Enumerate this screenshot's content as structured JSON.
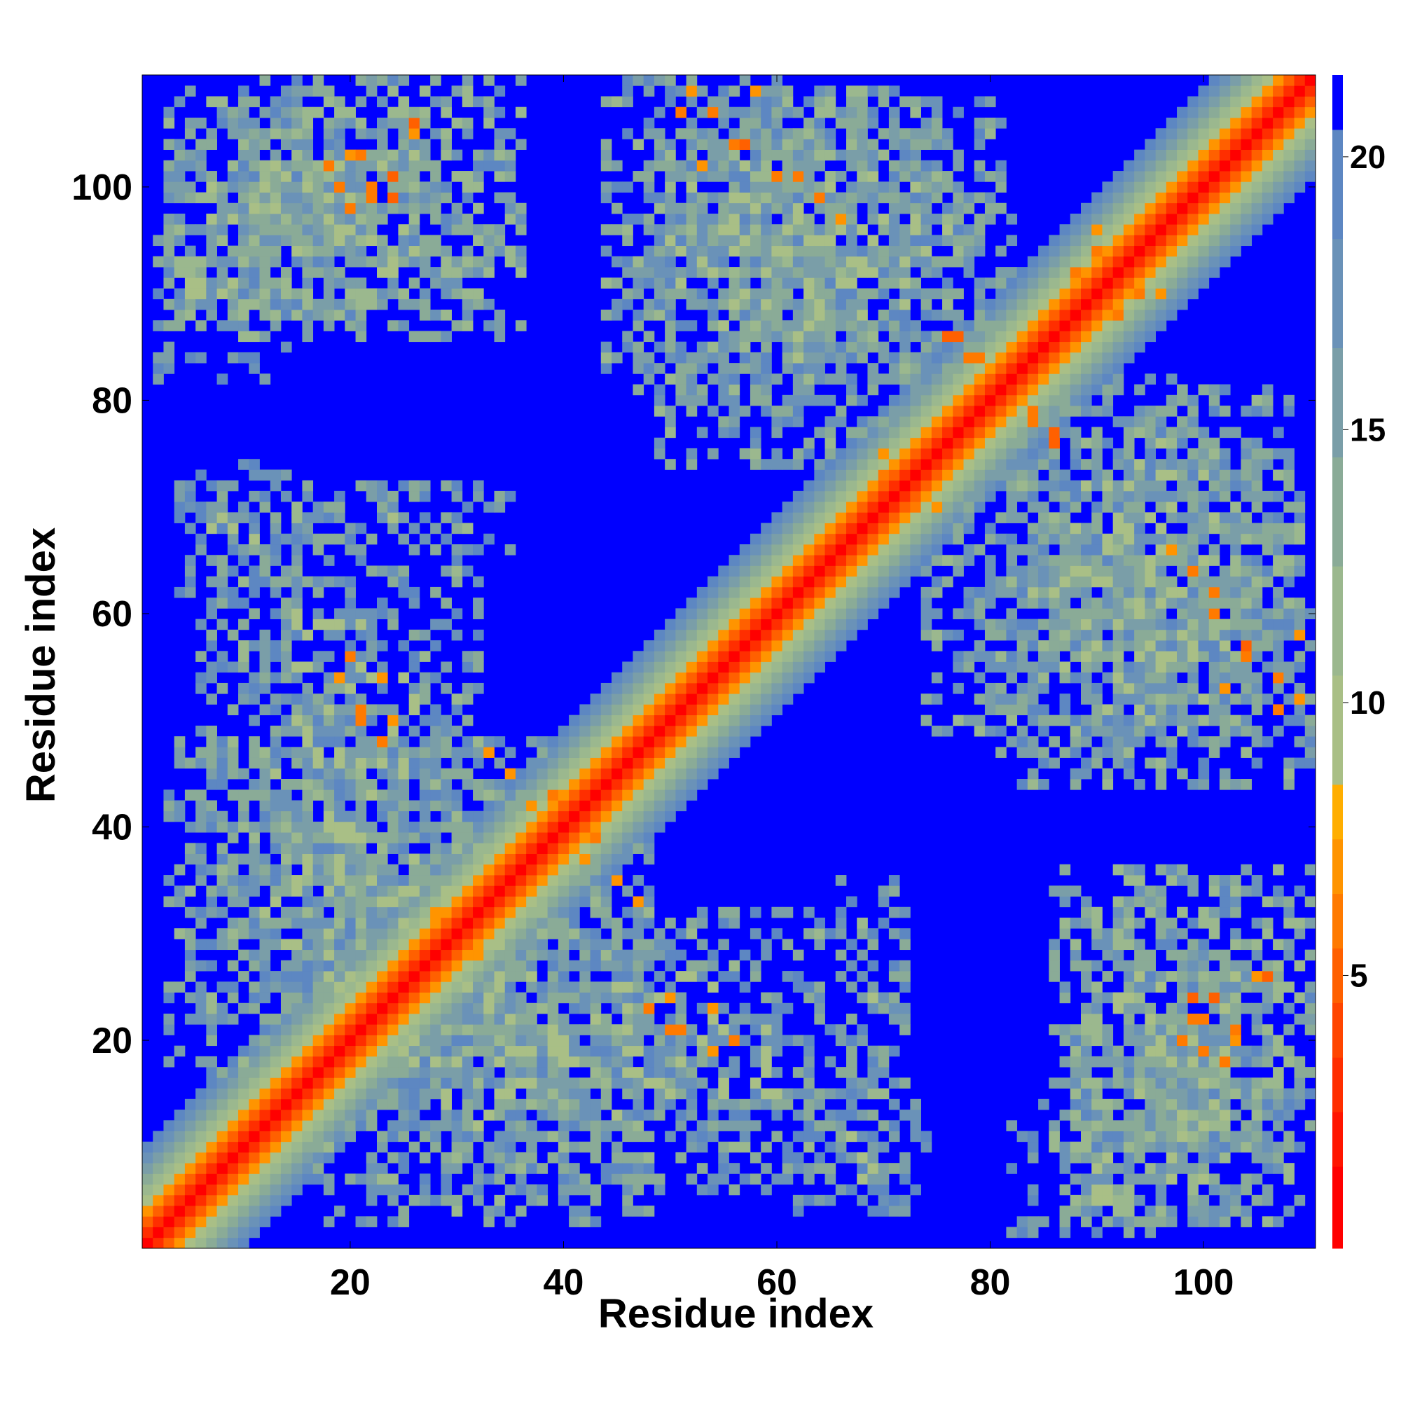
{
  "chart_data": {
    "type": "heatmap",
    "title": "",
    "xlabel": "Residue index",
    "ylabel": "Residue index",
    "xlim": [
      1,
      110
    ],
    "ylim": [
      1,
      110
    ],
    "n_residues": 110,
    "x_ticks": [
      20,
      40,
      60,
      80,
      100
    ],
    "y_ticks": [
      20,
      40,
      60,
      80,
      100
    ],
    "x_tick_labels": [
      "20",
      "40",
      "60",
      "80",
      "100"
    ],
    "y_tick_labels": [
      "20",
      "40",
      "60",
      "80",
      "100"
    ],
    "colorbar": {
      "range": [
        0,
        21.5
      ],
      "ticks": [
        5,
        10,
        15,
        20
      ],
      "tick_labels": [
        "5",
        "10",
        "15",
        "20"
      ],
      "levels": [
        {
          "lo": 0.0,
          "hi": 1.5,
          "color": "#ff0000"
        },
        {
          "lo": 1.5,
          "hi": 2.5,
          "color": "#ff1500"
        },
        {
          "lo": 2.5,
          "hi": 3.5,
          "color": "#ff2e00"
        },
        {
          "lo": 3.5,
          "hi": 4.5,
          "color": "#ff4500"
        },
        {
          "lo": 4.5,
          "hi": 5.5,
          "color": "#ff6000"
        },
        {
          "lo": 5.5,
          "hi": 6.5,
          "color": "#ff7a00"
        },
        {
          "lo": 6.5,
          "hi": 7.5,
          "color": "#ff9400"
        },
        {
          "lo": 7.5,
          "hi": 8.5,
          "color": "#ffae00"
        },
        {
          "lo": 8.5,
          "hi": 10.5,
          "color": "#a9bf86"
        },
        {
          "lo": 10.5,
          "hi": 12.5,
          "color": "#9bb88e"
        },
        {
          "lo": 12.5,
          "hi": 14.5,
          "color": "#8aab97"
        },
        {
          "lo": 14.5,
          "hi": 16.5,
          "color": "#7a9ea8"
        },
        {
          "lo": 16.5,
          "hi": 18.5,
          "color": "#6a92b8"
        },
        {
          "lo": 18.5,
          "hi": 20.5,
          "color": "#5d87c2"
        },
        {
          "lo": 20.5,
          "hi": 21.5,
          "color": "#0000ff"
        }
      ]
    },
    "background_color": "#0000ff",
    "diagonal_band": [
      {
        "max_offset": 0,
        "value": 1
      },
      {
        "max_offset": 1,
        "value": 3
      },
      {
        "max_offset": 2,
        "value": 5
      },
      {
        "max_offset": 3,
        "value": 7
      },
      {
        "max_offset": 4,
        "value": 9.5
      },
      {
        "max_offset": 5,
        "value": 11
      },
      {
        "max_offset": 6,
        "value": 13
      },
      {
        "max_offset": 7,
        "value": 15
      },
      {
        "max_offset": 8,
        "value": 17
      },
      {
        "max_offset": 9,
        "value": 19
      }
    ],
    "contact_blocks": [
      {
        "i_range": [
          3,
          40
        ],
        "j_range": [
          17,
          48
        ],
        "value": 16,
        "density": 0.72
      },
      {
        "i_range": [
          28,
          72
        ],
        "j_range": [
          6,
          32
        ],
        "value": 16,
        "density": 0.68
      },
      {
        "i_range": [
          3,
          26
        ],
        "j_range": [
          88,
          109
        ],
        "value": 15,
        "density": 0.74
      },
      {
        "i_range": [
          44,
          68
        ],
        "j_range": [
          82,
          110
        ],
        "value": 16,
        "density": 0.7
      },
      {
        "i_range": [
          56,
          82
        ],
        "j_range": [
          82,
          108
        ],
        "value": 16,
        "density": 0.66
      },
      {
        "i_range": [
          74,
          109
        ],
        "j_range": [
          47,
          76
        ],
        "value": 16,
        "density": 0.7
      },
      {
        "i_range": [
          86,
          110
        ],
        "j_range": [
          10,
          36
        ],
        "value": 15,
        "density": 0.72
      },
      {
        "i_range": [
          82,
          108
        ],
        "j_range": [
          2,
          14
        ],
        "value": 17,
        "density": 0.38
      },
      {
        "i_range": [
          60,
          74
        ],
        "j_range": [
          4,
          16
        ],
        "value": 17,
        "density": 0.35
      },
      {
        "i_range": [
          20,
          36
        ],
        "j_range": [
          66,
          72
        ],
        "value": 17,
        "density": 0.3
      },
      {
        "i_range": [
          2,
          10
        ],
        "j_range": [
          84,
          94
        ],
        "value": 17,
        "density": 0.4
      }
    ],
    "strong_contacts": [
      {
        "i": 18,
        "j": 102,
        "value": 6
      },
      {
        "i": 20,
        "j": 103,
        "value": 7
      },
      {
        "i": 22,
        "j": 100,
        "value": 6
      },
      {
        "i": 24,
        "j": 99,
        "value": 5
      },
      {
        "i": 19,
        "j": 100,
        "value": 6
      },
      {
        "i": 26,
        "j": 106,
        "value": 5
      },
      {
        "i": 51,
        "j": 107,
        "value": 6
      },
      {
        "i": 53,
        "j": 102,
        "value": 7
      },
      {
        "i": 56,
        "j": 104,
        "value": 6
      },
      {
        "i": 58,
        "j": 109,
        "value": 7
      },
      {
        "i": 62,
        "j": 101,
        "value": 6
      },
      {
        "i": 66,
        "j": 97,
        "value": 7
      },
      {
        "i": 77,
        "j": 86,
        "value": 5
      },
      {
        "i": 79,
        "j": 84,
        "value": 6
      },
      {
        "i": 84,
        "j": 78,
        "value": 6
      },
      {
        "i": 86,
        "j": 76,
        "value": 5
      },
      {
        "i": 70,
        "j": 75,
        "value": 7
      },
      {
        "i": 73,
        "j": 70,
        "value": 6
      },
      {
        "i": 101,
        "j": 60,
        "value": 6
      },
      {
        "i": 104,
        "j": 57,
        "value": 5
      },
      {
        "i": 107,
        "j": 54,
        "value": 6
      },
      {
        "i": 109,
        "j": 52,
        "value": 7
      },
      {
        "i": 99,
        "j": 64,
        "value": 6
      },
      {
        "i": 19,
        "j": 54,
        "value": 7
      },
      {
        "i": 21,
        "j": 51,
        "value": 6
      },
      {
        "i": 24,
        "j": 50,
        "value": 7
      },
      {
        "i": 42,
        "j": 37,
        "value": 7
      },
      {
        "i": 45,
        "j": 35,
        "value": 7
      },
      {
        "i": 47,
        "j": 33,
        "value": 7
      },
      {
        "i": 48,
        "j": 23,
        "value": 6
      },
      {
        "i": 50,
        "j": 21,
        "value": 6
      },
      {
        "i": 54,
        "j": 23,
        "value": 7
      },
      {
        "i": 56,
        "j": 20,
        "value": 6
      },
      {
        "i": 99,
        "j": 22,
        "value": 6
      },
      {
        "i": 101,
        "j": 24,
        "value": 5
      },
      {
        "i": 103,
        "j": 21,
        "value": 6
      },
      {
        "i": 105,
        "j": 26,
        "value": 7
      },
      {
        "i": 98,
        "j": 20,
        "value": 6
      },
      {
        "i": 36,
        "j": 36,
        "value": 5
      },
      {
        "i": 39,
        "j": 43,
        "value": 6
      },
      {
        "i": 32,
        "j": 30,
        "value": 6
      },
      {
        "i": 28,
        "j": 32,
        "value": 7
      },
      {
        "i": 88,
        "j": 92,
        "value": 6
      },
      {
        "i": 90,
        "j": 96,
        "value": 7
      },
      {
        "i": 92,
        "j": 94,
        "value": 6
      },
      {
        "i": 94,
        "j": 90,
        "value": 6
      }
    ]
  }
}
